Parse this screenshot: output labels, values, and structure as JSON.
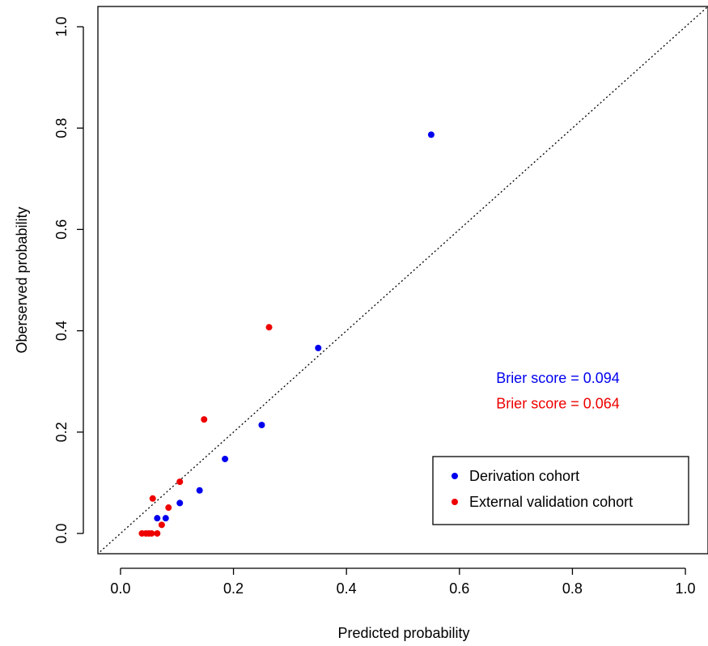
{
  "chart_data": {
    "type": "scatter",
    "title": "",
    "xlabel": "Predicted probability",
    "ylabel": "Oberserved probability",
    "xlim": [
      -0.04,
      1.04
    ],
    "ylim": [
      -0.04,
      1.04
    ],
    "x_ticks": [
      0.0,
      0.2,
      0.4,
      0.6,
      0.8,
      1.0
    ],
    "y_ticks": [
      0.0,
      0.2,
      0.4,
      0.6,
      0.8,
      1.0
    ],
    "x_tick_labels": [
      "0.0",
      "0.2",
      "0.4",
      "0.6",
      "0.8",
      "1.0"
    ],
    "y_tick_labels": [
      "0.0",
      "0.2",
      "0.4",
      "0.6",
      "0.8",
      "1.0"
    ],
    "grid": false,
    "reference_line": {
      "type": "diagonal",
      "style": "dotted",
      "from": [
        0,
        0
      ],
      "to": [
        1,
        1
      ]
    },
    "series": [
      {
        "name": "Derivation cohort",
        "color": "#0000ee",
        "points": [
          {
            "x": 0.065,
            "y": 0.03
          },
          {
            "x": 0.08,
            "y": 0.03
          },
          {
            "x": 0.105,
            "y": 0.06
          },
          {
            "x": 0.14,
            "y": 0.085
          },
          {
            "x": 0.185,
            "y": 0.147
          },
          {
            "x": 0.25,
            "y": 0.214
          },
          {
            "x": 0.35,
            "y": 0.366
          },
          {
            "x": 0.55,
            "y": 0.787
          }
        ]
      },
      {
        "name": "External validation cohort",
        "color": "#ee0000",
        "points": [
          {
            "x": 0.038,
            "y": 0.0
          },
          {
            "x": 0.045,
            "y": 0.0
          },
          {
            "x": 0.05,
            "y": 0.0
          },
          {
            "x": 0.055,
            "y": 0.0
          },
          {
            "x": 0.057,
            "y": 0.069
          },
          {
            "x": 0.065,
            "y": 0.0
          },
          {
            "x": 0.073,
            "y": 0.017
          },
          {
            "x": 0.085,
            "y": 0.051
          },
          {
            "x": 0.105,
            "y": 0.102
          },
          {
            "x": 0.148,
            "y": 0.225
          },
          {
            "x": 0.263,
            "y": 0.407
          }
        ]
      }
    ],
    "annotations": [
      {
        "text": "Brier score = 0.094",
        "color": "#0000ee",
        "x": 0.665,
        "y": 0.297
      },
      {
        "text": "Brier score = 0.064",
        "color": "#ee0000",
        "x": 0.665,
        "y": 0.247
      }
    ],
    "legend": {
      "position": "bottom-right",
      "entries": [
        "Derivation cohort",
        "External validation cohort"
      ]
    }
  }
}
